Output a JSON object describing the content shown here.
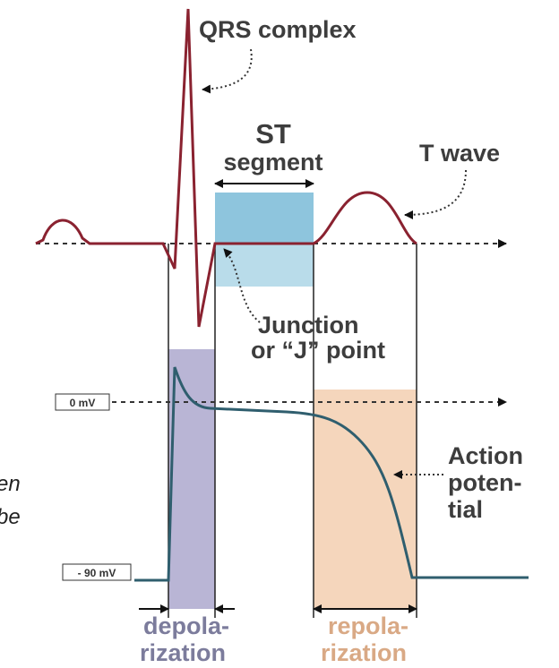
{
  "labels": {
    "qrs": "QRS complex",
    "st": [
      "ST",
      "segment"
    ],
    "t_wave": "T wave",
    "junction": [
      "Junction",
      "or “J” point"
    ],
    "zero_mv": "0 mV",
    "minus_90_mv": "- 90 mV",
    "action_potential": [
      "Action",
      "poten-",
      "tial"
    ],
    "depolarization": [
      "depola-",
      "rization"
    ],
    "repolarization": [
      "repola-",
      "rization"
    ],
    "left_cut": [
      "en",
      "be"
    ]
  }
}
